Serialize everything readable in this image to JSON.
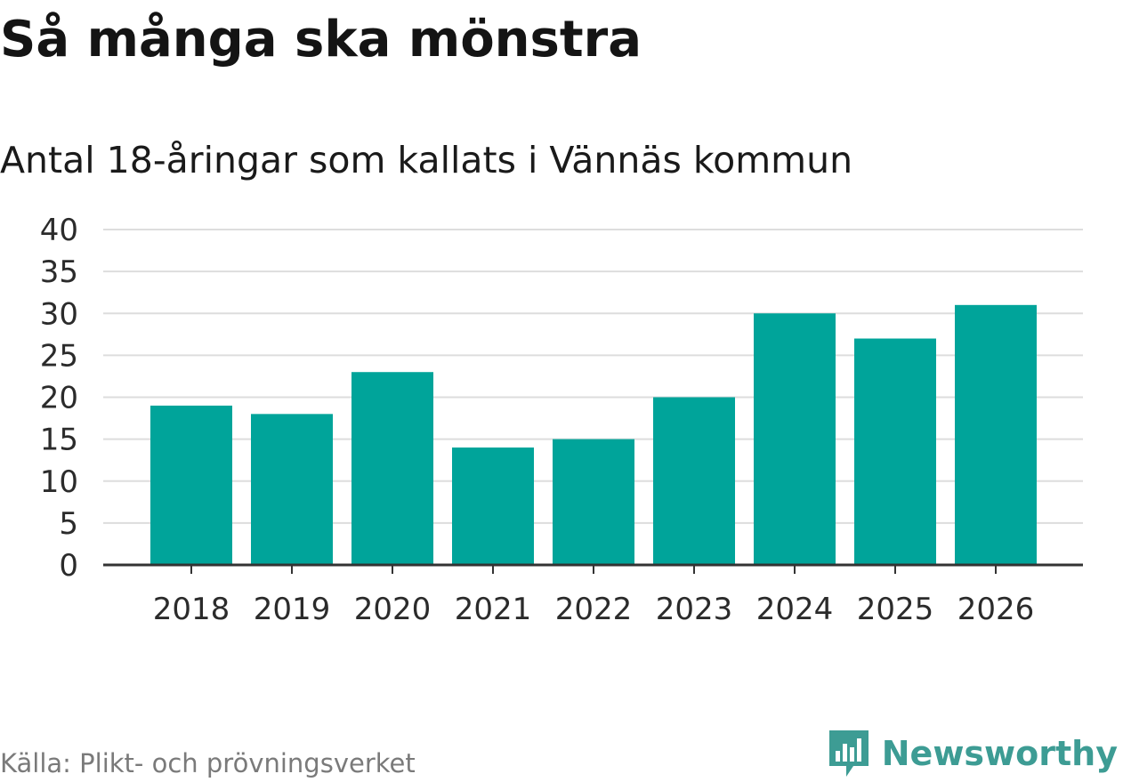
{
  "header": {
    "title": "Så många ska mönstra",
    "subtitle": "Antal 18-åringar som kallats i Vännäs kommun"
  },
  "footer": {
    "source": "Källa: Plikt- och prövningsverket",
    "brand": "Newsworthy",
    "brand_icon": "newsworthy-logo-icon"
  },
  "colors": {
    "bar": "#00a49a",
    "grid": "#dddddd",
    "axis": "#333333",
    "brand": "#3d9c94"
  },
  "chart_data": {
    "type": "bar",
    "title": "Så många ska mönstra",
    "subtitle": "Antal 18-åringar som kallats i Vännäs kommun",
    "xlabel": "",
    "ylabel": "",
    "categories": [
      "2018",
      "2019",
      "2020",
      "2021",
      "2022",
      "2023",
      "2024",
      "2025",
      "2026"
    ],
    "values": [
      19,
      18,
      23,
      14,
      15,
      20,
      30,
      27,
      31
    ],
    "ylim": [
      0,
      40
    ],
    "yticks": [
      0,
      5,
      10,
      15,
      20,
      25,
      30,
      35,
      40
    ],
    "grid": true,
    "legend": "none"
  }
}
